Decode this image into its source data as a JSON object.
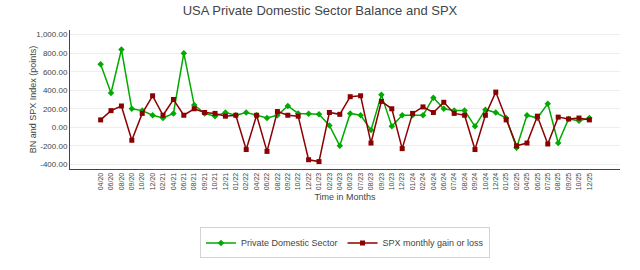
{
  "chart_data": {
    "type": "line",
    "title": "USA Private Domestic Sector Balance and SPX",
    "xlabel": "Time in Months",
    "ylabel": "BN and SPX Index (points)",
    "categories": [
      "04/20",
      "06/20",
      "08/20",
      "09/20",
      "10/20",
      "12/20",
      "02/21",
      "04/21",
      "06/21",
      "08/21",
      "09/21",
      "10/21",
      "12/21",
      "01/22",
      "02/22",
      "04/22",
      "06/22",
      "08/22",
      "09/22",
      "10/22",
      "12/22",
      "01/23",
      "02/23",
      "04/23",
      "06/23",
      "07/23",
      "08/23",
      "09/23",
      "10/23",
      "12/23",
      "01/24",
      "02/24",
      "04/24",
      "06/24",
      "07/24",
      "08/24",
      "09/24",
      "10/24",
      "12/24",
      "01/25",
      "02/25",
      "04/25",
      "06/25",
      "07/25",
      "08/25",
      "09/25",
      "10/25",
      "12/25"
    ],
    "series": [
      {
        "name": "Private Domestic Sector",
        "color": "#00aa00",
        "marker": "diamond",
        "values": [
          680,
          370,
          840,
          200,
          180,
          130,
          100,
          150,
          800,
          240,
          150,
          120,
          160,
          130,
          160,
          130,
          100,
          130,
          230,
          150,
          145,
          140,
          20,
          -200,
          150,
          130,
          -30,
          350,
          10,
          130,
          130,
          130,
          320,
          200,
          180,
          180,
          10,
          190,
          160,
          100,
          -220,
          130,
          100,
          255,
          -170,
          90,
          70,
          100
        ]
      },
      {
        "name": "SPX monthly gain or loss",
        "color": "#8b0000",
        "marker": "square",
        "values": [
          80,
          180,
          230,
          -140,
          150,
          340,
          130,
          300,
          130,
          200,
          160,
          150,
          120,
          130,
          -240,
          130,
          -260,
          170,
          130,
          120,
          -350,
          -370,
          160,
          140,
          330,
          340,
          -170,
          280,
          200,
          -230,
          150,
          220,
          160,
          270,
          150,
          130,
          -240,
          130,
          380,
          80,
          -200,
          -170,
          120,
          -180,
          110,
          90,
          100,
          80
        ]
      }
    ],
    "ylim": [
      -450,
      1050
    ],
    "yticks": [
      {
        "value": -400,
        "label": "-400.00"
      },
      {
        "value": -200,
        "label": "-200.00"
      },
      {
        "value": 0,
        "label": "0.00"
      },
      {
        "value": 200,
        "label": "200.00"
      },
      {
        "value": 400,
        "label": "400.00"
      },
      {
        "value": 600,
        "label": "600.00"
      },
      {
        "value": 800,
        "label": "800.00"
      },
      {
        "value": 1000,
        "label": "1,000.00"
      }
    ],
    "grid": true,
    "legend": "lower center"
  }
}
